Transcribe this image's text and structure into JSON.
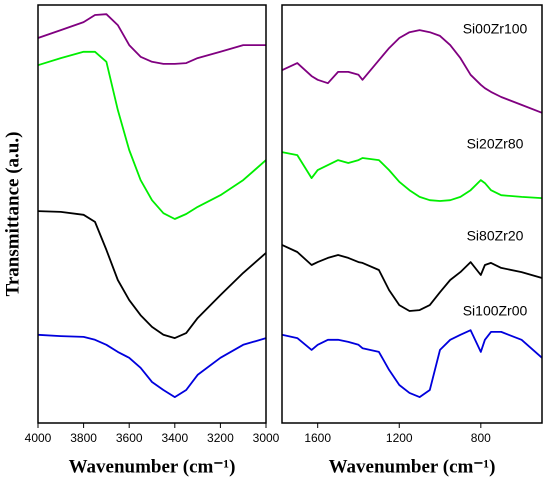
{
  "chart_data": [
    {
      "type": "line",
      "x_label": "Wavenumber (cm⁻¹)",
      "y_label": "Transmittance (a.u.)",
      "x": [
        4000,
        3900,
        3800,
        3750,
        3700,
        3650,
        3600,
        3550,
        3500,
        3450,
        3400,
        3350,
        3300,
        3200,
        3100,
        3000
      ],
      "xlim": [
        4000,
        3000
      ],
      "xticks": [
        4000,
        3800,
        3600,
        3400,
        3200,
        3000
      ],
      "ylim": [
        0,
        100
      ],
      "series": [
        {
          "color": "#800080",
          "values": [
            92.1,
            94.0,
            95.9,
            97.6,
            97.8,
            95.2,
            90.4,
            87.6,
            86.4,
            85.9,
            85.9,
            86.1,
            87.3,
            88.8,
            90.4,
            90.4
          ]
        },
        {
          "color": "#00ee00",
          "values": [
            85.6,
            87.3,
            88.8,
            88.8,
            86.4,
            74.9,
            65.3,
            58.1,
            53.3,
            50.2,
            48.8,
            50.0,
            51.7,
            54.5,
            58.1,
            62.9
          ]
        },
        {
          "color": "#000000",
          "values": [
            50.7,
            50.5,
            49.8,
            48.1,
            41.4,
            34.2,
            29.4,
            25.8,
            23.0,
            21.1,
            20.3,
            21.5,
            25.1,
            30.6,
            35.9,
            40.7
          ]
        },
        {
          "color": "#0000dd",
          "values": [
            21.1,
            20.8,
            20.6,
            19.9,
            18.7,
            17.0,
            15.6,
            13.2,
            9.8,
            7.9,
            6.2,
            7.9,
            11.5,
            15.6,
            18.7,
            20.3
          ]
        }
      ]
    },
    {
      "type": "line",
      "x_label": "Wavenumber (cm⁻¹)",
      "x": [
        1775,
        1700,
        1630,
        1600,
        1550,
        1500,
        1450,
        1400,
        1380,
        1300,
        1250,
        1200,
        1150,
        1100,
        1050,
        1000,
        950,
        900,
        850,
        800,
        780,
        750,
        700,
        600,
        500
      ],
      "xlim": [
        1775,
        500
      ],
      "xticks": [
        1600,
        1200,
        800
      ],
      "ylim": [
        0,
        100
      ],
      "series": [
        {
          "name": "Si00Zr100",
          "color": "#800080",
          "values": [
            84.4,
            86.1,
            83.0,
            82.1,
            81.3,
            84.0,
            84.0,
            83.3,
            82.1,
            86.8,
            89.7,
            92.1,
            93.5,
            94.0,
            93.5,
            92.6,
            90.4,
            87.3,
            83.3,
            80.9,
            80.1,
            79.2,
            78.0,
            76.1,
            74.2
          ]
        },
        {
          "name": "Si20Zr80",
          "color": "#00ee00",
          "values": [
            64.8,
            64.1,
            58.6,
            60.5,
            61.7,
            62.9,
            62.2,
            62.9,
            63.4,
            62.9,
            60.5,
            57.7,
            55.7,
            54.1,
            53.3,
            53.1,
            53.3,
            54.1,
            55.7,
            58.1,
            57.4,
            55.7,
            54.5,
            54.1,
            53.8
          ]
        },
        {
          "name": "Si80Zr20",
          "color": "#000000",
          "values": [
            42.6,
            40.9,
            37.8,
            38.5,
            39.5,
            40.2,
            39.5,
            38.5,
            38.3,
            36.6,
            31.8,
            28.2,
            26.8,
            27.0,
            28.2,
            31.3,
            34.2,
            36.1,
            38.5,
            35.4,
            37.8,
            38.3,
            37.1,
            36.1,
            34.7
          ]
        },
        {
          "name": "Si100Zr00",
          "color": "#0000dd",
          "values": [
            21.1,
            20.3,
            17.5,
            18.7,
            19.9,
            19.9,
            19.4,
            18.7,
            17.9,
            17.0,
            12.7,
            9.1,
            7.2,
            6.2,
            7.9,
            17.5,
            19.9,
            21.1,
            22.2,
            17.0,
            19.9,
            21.8,
            21.8,
            19.9,
            15.6
          ]
        }
      ]
    }
  ]
}
